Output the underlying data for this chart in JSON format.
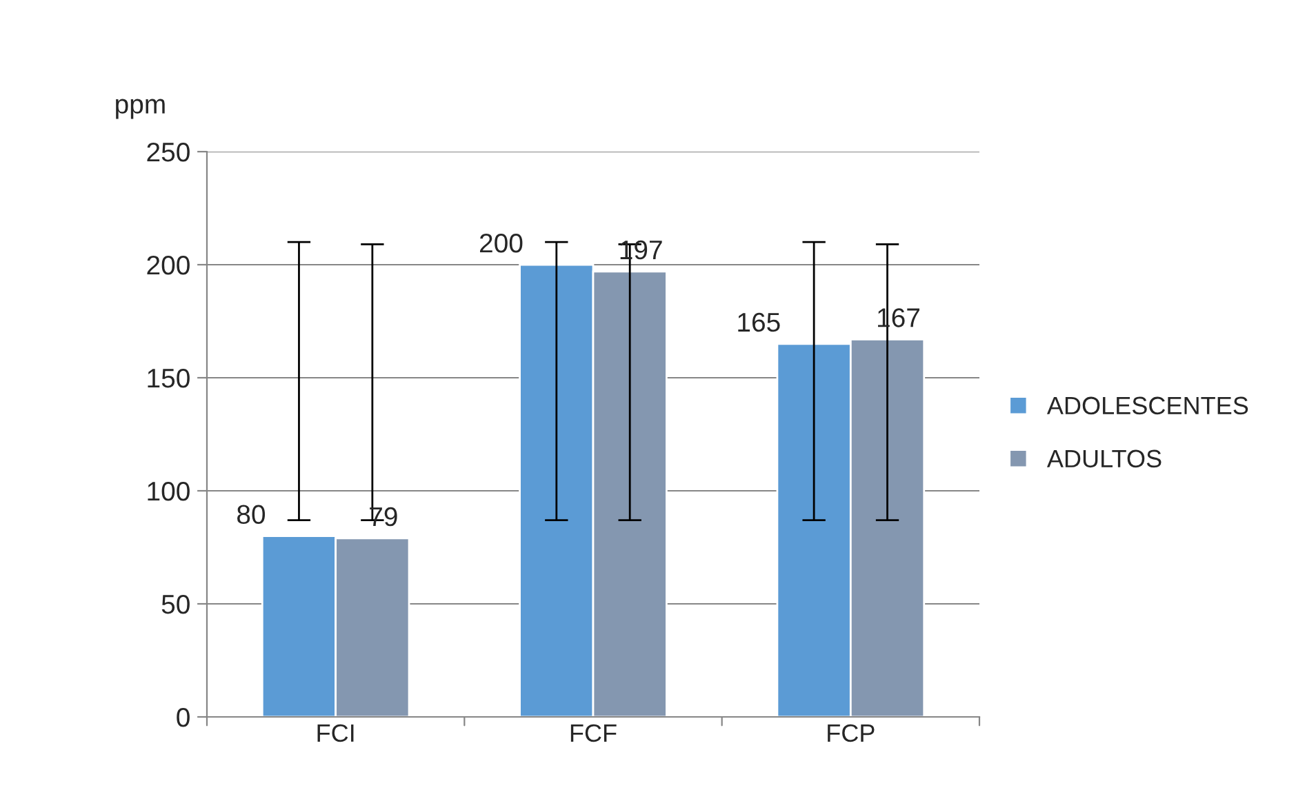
{
  "chart_data": {
    "type": "bar",
    "ylabel": "ppm",
    "categories": [
      "FCI",
      "FCF",
      "FCP"
    ],
    "series": [
      {
        "name": "ADOLESCENTES",
        "color": "#5b9bd5",
        "values": [
          80,
          200,
          165
        ],
        "errors": [
          [
            87,
            210
          ],
          [
            87,
            210
          ],
          [
            87,
            210
          ]
        ]
      },
      {
        "name": "ADULTOS",
        "color": "#8497b0",
        "values": [
          79,
          197,
          167
        ],
        "errors": [
          [
            87,
            209
          ],
          [
            87,
            209
          ],
          [
            87,
            209
          ]
        ]
      }
    ],
    "ylim": [
      0,
      250
    ],
    "yticks": [
      0,
      50,
      100,
      150,
      200,
      250
    ],
    "grid": "y",
    "legend": "right",
    "data_labels": true
  }
}
